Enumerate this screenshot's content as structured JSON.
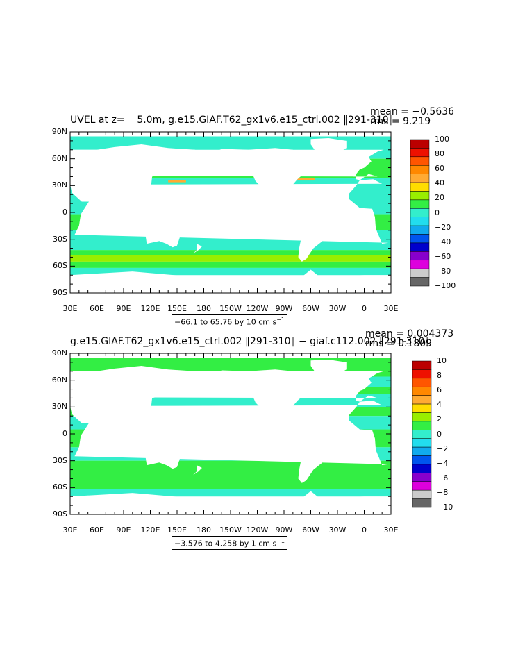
{
  "panels": [
    {
      "title_left": "UVEL at z=    5.0m, g.e15.GIAF.T62_gx1v6.e15_ctrl.002 ‖291-310‖",
      "mean": "mean = −0.5636",
      "rms": "rms = 9.219",
      "range_label": "−66.1 to 65.76 by 10 cm s",
      "range_unit_sup": "−1",
      "colorbar_labels": [
        "100",
        "80",
        "60",
        "40",
        "20",
        "0",
        "−20",
        "−40",
        "−60",
        "−80",
        "−100"
      ]
    },
    {
      "title_left": "g.e15.GIAF.T62_gx1v6.e15_ctrl.002 ‖291-310‖ − giaf.c112.002 ‖291-310‖",
      "mean": "mean = 0.004373",
      "rms": "rms = 0.1809",
      "range_label": "−3.576 to 4.258 by 1 cm s",
      "range_unit_sup": "−1",
      "colorbar_labels": [
        "10",
        "8",
        "6",
        "4",
        "2",
        "0",
        "−2",
        "−4",
        "−6",
        "−8",
        "−10"
      ]
    }
  ],
  "lat_labels": [
    "90N",
    "60N",
    "30N",
    "0",
    "30S",
    "60S",
    "90S"
  ],
  "lon_labels": [
    "30E",
    "60E",
    "90E",
    "120E",
    "150E",
    "180",
    "150W",
    "120W",
    "90W",
    "60W",
    "30W",
    "0",
    "30E"
  ],
  "colors": {
    "ocean_main": "#33eecc",
    "ocean_band": "#33ee44",
    "land": "#ffffff",
    "palette": [
      "#bb0000",
      "#ee1100",
      "#ff5500",
      "#ff8800",
      "#ffaa33",
      "#ffdd00",
      "#99ee00",
      "#33ee44",
      "#33eecc",
      "#22ddee",
      "#11aaee",
      "#0055ee",
      "#0000cc",
      "#8800cc",
      "#dd00dd",
      "#cccccc",
      "#666666"
    ]
  }
}
